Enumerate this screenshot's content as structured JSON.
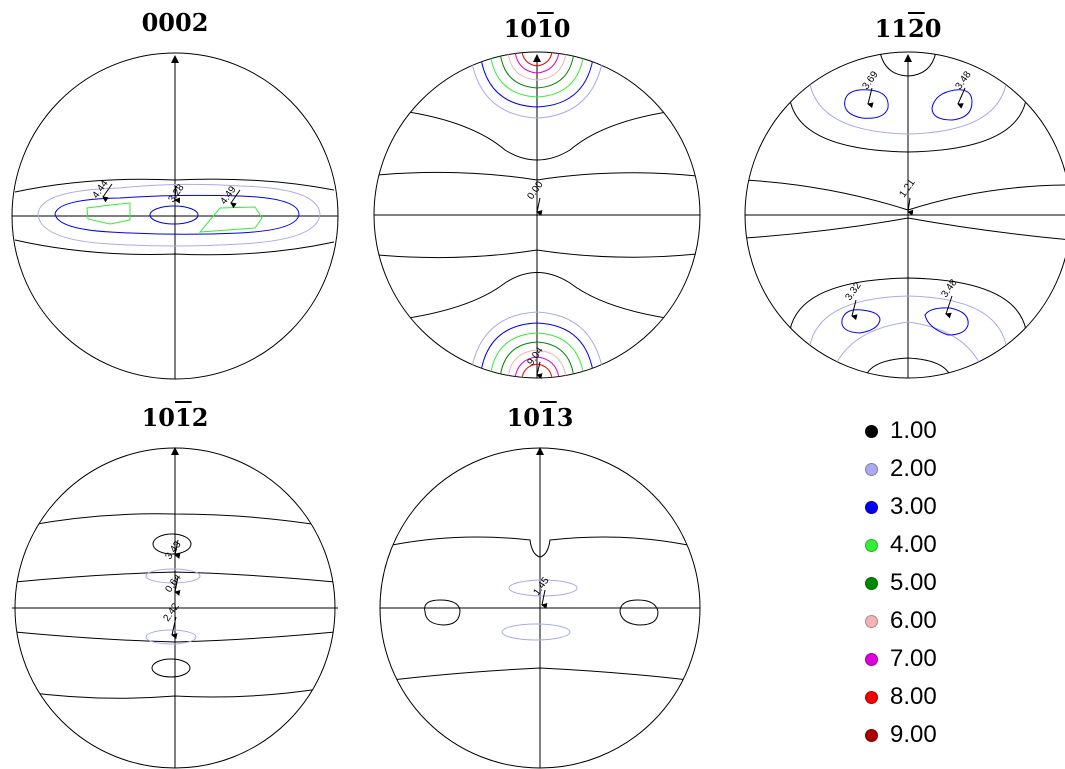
{
  "poles": [
    {
      "id": "0002",
      "title": [
        "0002",
        "",
        ""
      ],
      "labels": [
        "4.44",
        "3.28",
        "4.49"
      ]
    },
    {
      "id": "10-10",
      "title": [
        "10",
        "1",
        "0"
      ],
      "labels": [
        "0.00",
        "9.04"
      ]
    },
    {
      "id": "11-20",
      "title": [
        "11",
        "2",
        "0"
      ],
      "labels": [
        "3.69",
        "3.48",
        "1.21",
        "3.32",
        "3.48"
      ]
    },
    {
      "id": "10-12",
      "title": [
        "10",
        "1",
        "2"
      ],
      "labels": [
        "3.43",
        "0.64",
        "2.42"
      ]
    },
    {
      "id": "10-13",
      "title": [
        "10",
        "1",
        "3"
      ],
      "labels": [
        "1.45"
      ]
    }
  ],
  "legend": [
    {
      "label": "1.00",
      "color": "#000000"
    },
    {
      "label": "2.00",
      "color": "#aaaaee"
    },
    {
      "label": "3.00",
      "color": "#0000ee"
    },
    {
      "label": "4.00",
      "color": "#33ee33"
    },
    {
      "label": "5.00",
      "color": "#008800"
    },
    {
      "label": "6.00",
      "color": "#f2b4b4"
    },
    {
      "label": "7.00",
      "color": "#dd00dd"
    },
    {
      "label": "8.00",
      "color": "#ee0000"
    },
    {
      "label": "9.00",
      "color": "#aa0000"
    }
  ]
}
